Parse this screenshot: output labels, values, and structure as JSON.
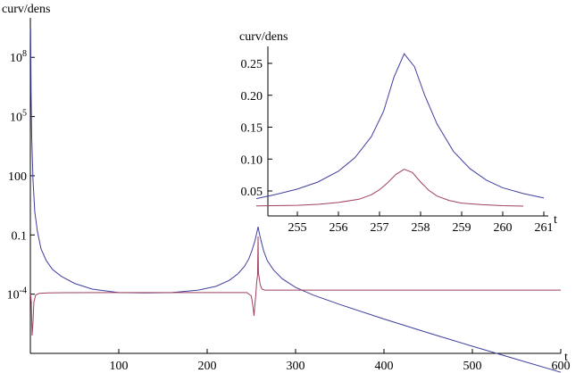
{
  "chart_data": [
    {
      "type": "line",
      "panel": "main",
      "xlabel": "t",
      "ylabel": "curv/dens",
      "y_scale": "log",
      "xlim": [
        0,
        600
      ],
      "ylim": [
        1e-07,
        10000000000.0
      ],
      "x_ticks": [
        {
          "value": 100,
          "label": "100"
        },
        {
          "value": 200,
          "label": "200"
        },
        {
          "value": 300,
          "label": "300"
        },
        {
          "value": 400,
          "label": "400"
        },
        {
          "value": 500,
          "label": "500"
        },
        {
          "value": 600,
          "label": "600"
        }
      ],
      "y_ticks": [
        {
          "value": 0.0001,
          "label_base": "10",
          "label_exp": "-4"
        },
        {
          "value": 0.1,
          "label_base": "0.1",
          "label_exp": ""
        },
        {
          "value": 100,
          "label_base": "100",
          "label_exp": ""
        },
        {
          "value": 100000,
          "label_base": "10",
          "label_exp": "5"
        },
        {
          "value": 100000000,
          "label_base": "10",
          "label_exp": "8"
        }
      ],
      "series": [
        {
          "color": "#3f3f9f",
          "x": [
            0.3,
            0.8,
            1.5,
            3,
            5,
            8,
            12,
            18,
            25,
            35,
            50,
            70,
            100,
            130,
            160,
            190,
            210,
            225,
            235,
            242,
            247,
            251,
            254,
            256,
            257.6,
            259,
            261,
            264,
            268,
            275,
            285,
            300,
            320,
            350,
            400,
            450,
            500,
            550,
            600
          ],
          "y": [
            3000000000.0,
            2000000.0,
            10000.0,
            60,
            1.5,
            0.15,
            0.02,
            0.005,
            0.0018,
            0.0008,
            0.00035,
            0.00018,
            0.00012,
            0.000115,
            0.00012,
            0.00016,
            0.00025,
            0.0005,
            0.0011,
            0.0025,
            0.006,
            0.018,
            0.05,
            0.12,
            0.26,
            0.12,
            0.05,
            0.015,
            0.005,
            0.0017,
            0.0006,
            0.00022,
            9e-05,
            3e-05,
            5.5e-06,
            1.1e-06,
            2.3e-07,
            5e-08,
            1.1e-08
          ]
        },
        {
          "color": "#a0405f",
          "x": [
            0.3,
            1,
            2,
            3,
            4,
            6,
            10,
            20,
            40,
            100,
            150,
            200,
            245,
            250,
            252,
            253,
            254,
            255,
            256,
            257,
            257.6,
            258,
            259,
            260,
            262,
            265,
            270,
            280,
            300,
            400,
            500,
            600
          ],
          "y": [
            0.0001,
            4e-05,
            8e-07,
            4e-06,
            4e-05,
            9e-05,
            0.00011,
            0.000115,
            0.000118,
            0.00012,
            0.00012,
            0.00012,
            0.00012,
            8e-05,
            2e-05,
            8e-06,
            3e-05,
            9e-05,
            0.0004,
            0.0009,
            0.084,
            0.0012,
            0.0006,
            0.0003,
            0.00018,
            0.00016,
            0.00016,
            0.00016,
            0.00016,
            0.00016,
            0.00016,
            0.00016
          ]
        }
      ]
    },
    {
      "type": "line",
      "panel": "inset",
      "xlabel": "t",
      "ylabel": "curv/dens",
      "xlim": [
        254,
        261
      ],
      "ylim": [
        0.025,
        0.27
      ],
      "x_ticks": [
        {
          "value": 255,
          "label": "255"
        },
        {
          "value": 256,
          "label": "256"
        },
        {
          "value": 257,
          "label": "257"
        },
        {
          "value": 258,
          "label": "258"
        },
        {
          "value": 259,
          "label": "259"
        },
        {
          "value": 260,
          "label": "260"
        },
        {
          "value": 261,
          "label": "261"
        }
      ],
      "y_ticks": [
        {
          "value": 0.05,
          "label": "0.05"
        },
        {
          "value": 0.1,
          "label": "0.10"
        },
        {
          "value": 0.15,
          "label": "0.15"
        },
        {
          "value": 0.2,
          "label": "0.20"
        },
        {
          "value": 0.25,
          "label": "0.25"
        }
      ],
      "series": [
        {
          "color": "#3f3f9f",
          "x": [
            254.0,
            254.5,
            255.0,
            255.5,
            256.0,
            256.4,
            256.8,
            257.1,
            257.35,
            257.6,
            257.85,
            258.1,
            258.4,
            258.8,
            259.2,
            259.6,
            260.0,
            260.5,
            261.0
          ],
          "y": [
            0.038,
            0.045,
            0.053,
            0.064,
            0.081,
            0.102,
            0.135,
            0.175,
            0.228,
            0.265,
            0.245,
            0.2,
            0.155,
            0.112,
            0.085,
            0.067,
            0.055,
            0.046,
            0.039
          ]
        },
        {
          "color": "#a0405f",
          "x": [
            254.0,
            255.0,
            255.5,
            256.0,
            256.5,
            256.8,
            257.0,
            257.2,
            257.4,
            257.6,
            257.8,
            258.0,
            258.2,
            258.4,
            258.7,
            259.0,
            259.5,
            260.0,
            260.5
          ],
          "y": [
            0.0265,
            0.0275,
            0.029,
            0.032,
            0.037,
            0.044,
            0.052,
            0.063,
            0.076,
            0.084,
            0.079,
            0.064,
            0.051,
            0.042,
            0.035,
            0.031,
            0.0285,
            0.027,
            0.0263
          ]
        }
      ]
    }
  ]
}
